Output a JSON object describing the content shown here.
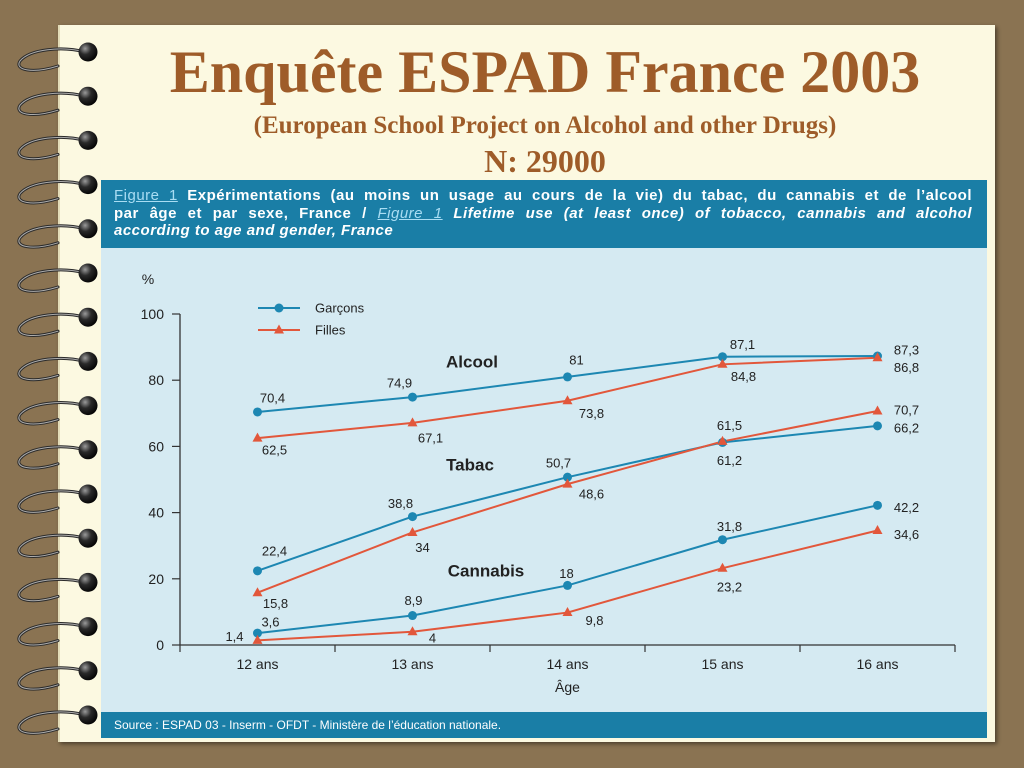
{
  "slide": {
    "title": "Enquête ESPAD France 2003",
    "subtitle": "(European School Project on Alcohol and other Drugs)",
    "sample": "N: 29000"
  },
  "figure": {
    "label_fr": "Figure 1",
    "caption_fr_line1": "Expérimentations (au moins un usage au cours de la vie) du tabac, du cannabis et de l’alcool",
    "caption_fr_line2": "par âge et par sexe, France /",
    "label_en": "Figure 1",
    "caption_en_line2": "Lifetime use (at least once) of tobacco, cannabis and alcohol",
    "caption_en_line3": "according to age and gender, France",
    "source": "Source : ESPAD 03 - Inserm - OFDT - Ministère de l’éducation nationale."
  },
  "colors": {
    "background": "#8a7352",
    "page": "#fcf9e1",
    "title": "#9e5c29",
    "band": "#1a7ea6",
    "chart_bg": "#d5eaf2",
    "figure_label": "#a9ddf3"
  },
  "chart_data": {
    "type": "line",
    "categories": [
      "12 ans",
      "13 ans",
      "14 ans",
      "15 ans",
      "16 ans"
    ],
    "xlabel": "Âge",
    "ylabel": "%",
    "ylim": [
      0,
      100
    ],
    "yticks": [
      0,
      20,
      40,
      60,
      80,
      100
    ],
    "grid": false,
    "legend_position": "top-left",
    "series": [
      {
        "name": "Garçons",
        "group": "Alcool",
        "color": "#1d87b2",
        "marker": "circle",
        "values": [
          70.4,
          74.9,
          81,
          87.1,
          87.3
        ],
        "value_labels": [
          "70,4",
          "74,9",
          "81",
          "87,1",
          "87,3"
        ]
      },
      {
        "name": "Filles",
        "group": "Alcool",
        "color": "#e2573b",
        "marker": "triangle",
        "values": [
          62.5,
          67.1,
          73.8,
          84.8,
          86.8
        ],
        "value_labels": [
          "62,5",
          "67,1",
          "73,8",
          "84,8",
          "86,8"
        ]
      },
      {
        "name": "Garçons",
        "group": "Tabac",
        "color": "#1d87b2",
        "marker": "circle",
        "values": [
          22.4,
          38.8,
          50.7,
          61.2,
          66.2
        ],
        "value_labels": [
          "22,4",
          "38,8",
          "50,7",
          "61,2",
          "66,2"
        ]
      },
      {
        "name": "Filles",
        "group": "Tabac",
        "color": "#e2573b",
        "marker": "triangle",
        "values": [
          15.8,
          34,
          48.6,
          61.5,
          70.7
        ],
        "value_labels": [
          "15,8",
          "34",
          "48,6",
          "61,5",
          "70,7"
        ]
      },
      {
        "name": "Garçons",
        "group": "Cannabis",
        "color": "#1d87b2",
        "marker": "circle",
        "values": [
          3.6,
          8.9,
          18,
          31.8,
          42.2
        ],
        "value_labels": [
          "3,6",
          "8,9",
          "18",
          "31,8",
          "42,2"
        ]
      },
      {
        "name": "Filles",
        "group": "Cannabis",
        "color": "#e2573b",
        "marker": "triangle",
        "values": [
          1.4,
          4,
          9.8,
          23.2,
          34.6
        ],
        "value_labels": [
          "1,4",
          "4",
          "9,8",
          "23,2",
          "34,6"
        ]
      }
    ]
  }
}
